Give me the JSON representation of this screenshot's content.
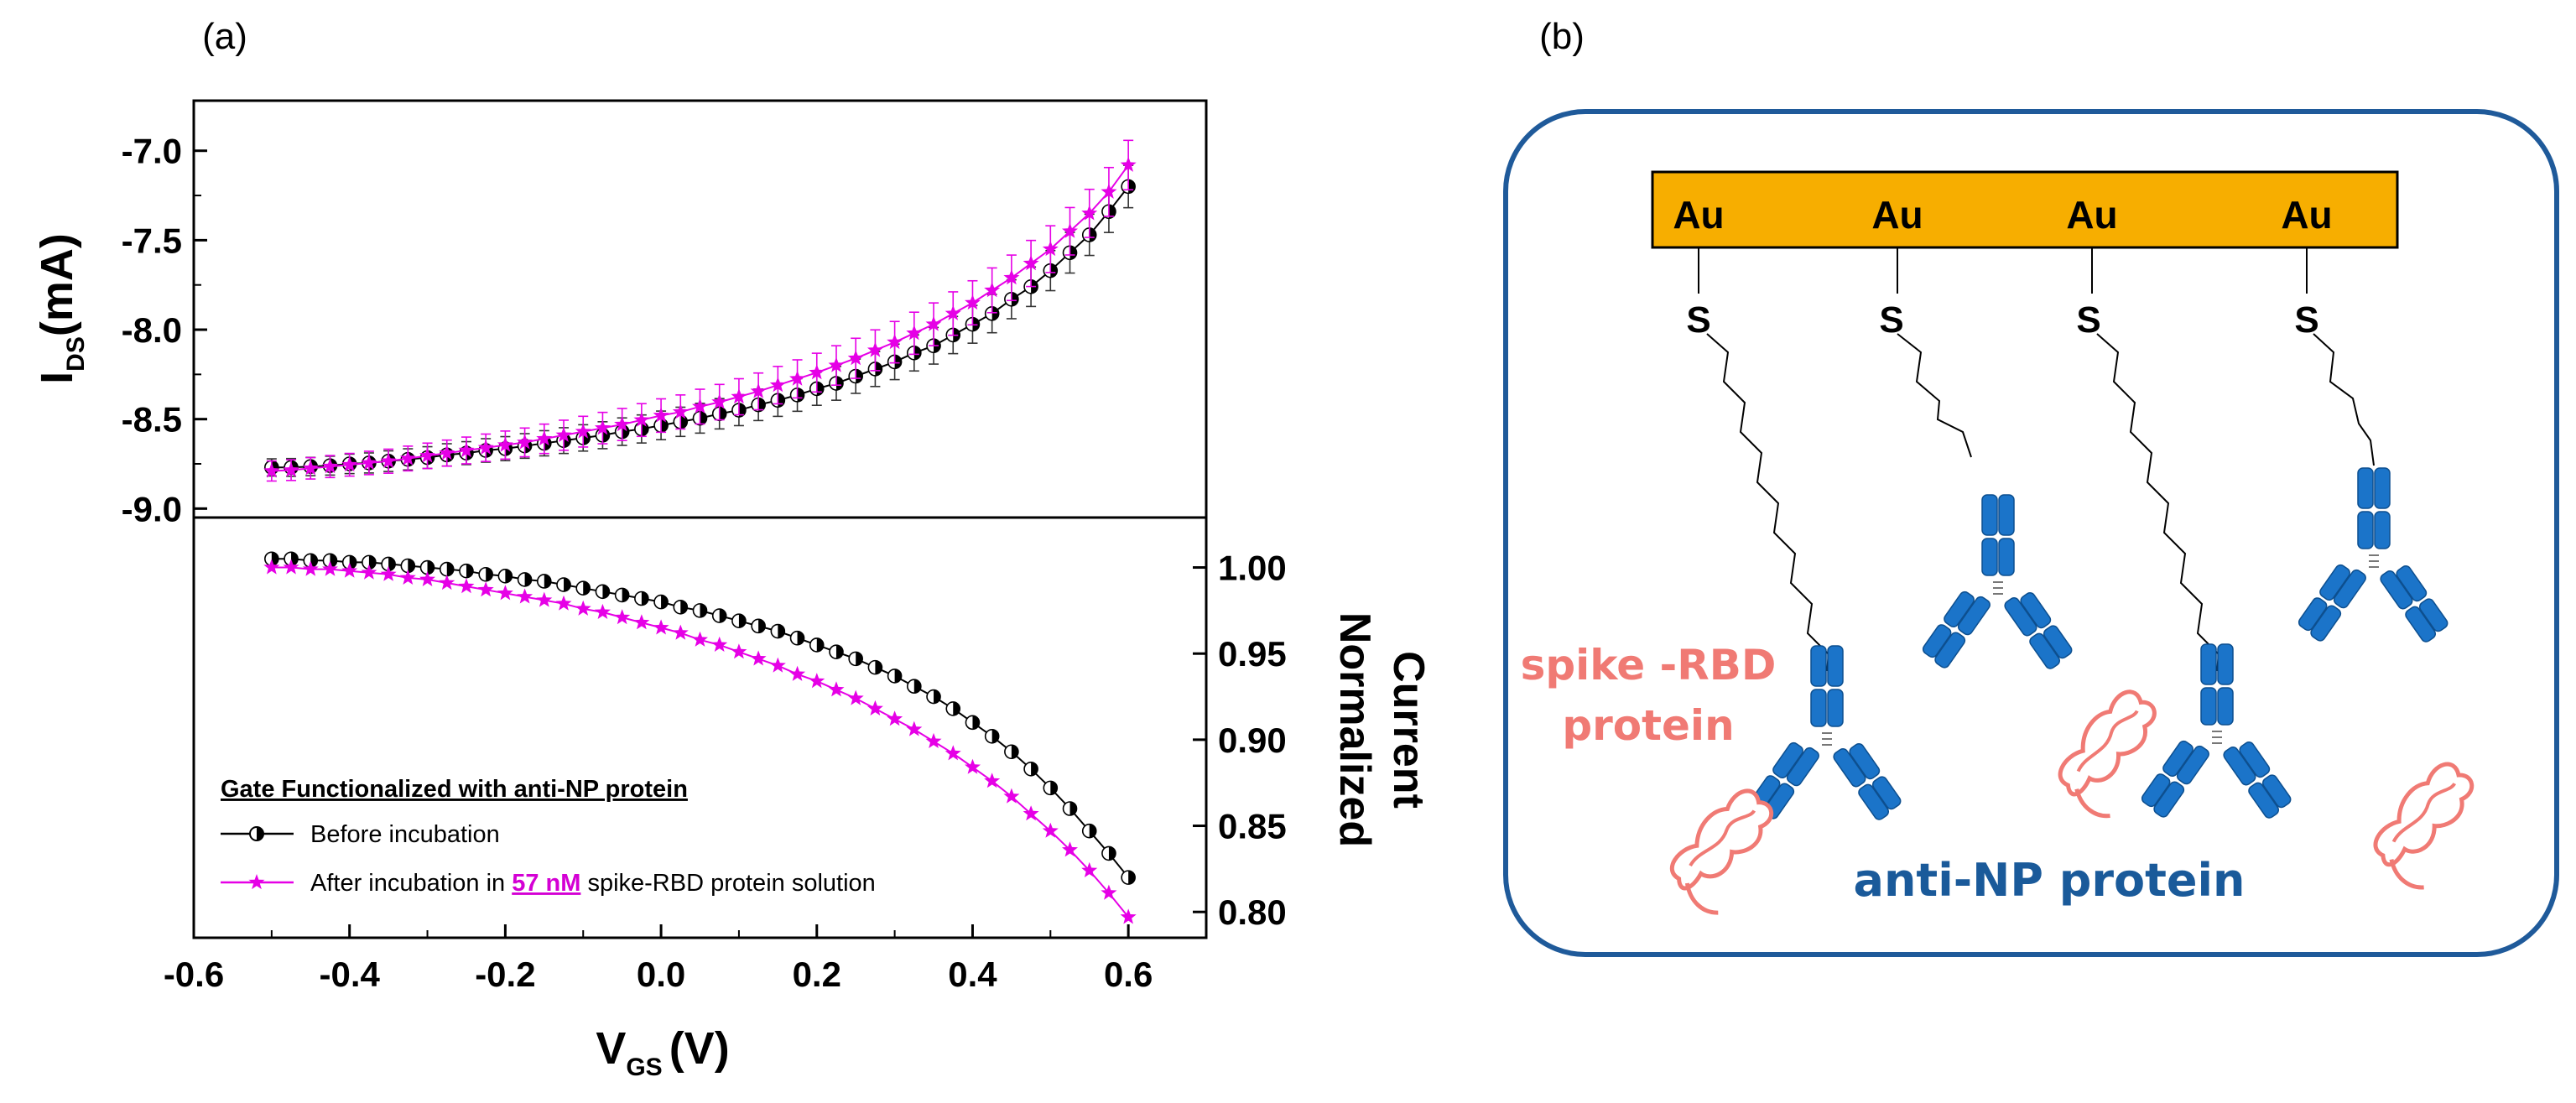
{
  "panel_a_label": "(a)",
  "panel_b_label": "(b)",
  "chart_data": [
    {
      "type": "line",
      "name": "top-panel",
      "ylabel_main": "I",
      "ylabel_sub": "DS",
      "ylabel_unit": "(mA)",
      "xlim": [
        -0.6,
        0.7
      ],
      "ylim": [
        -9.05,
        -6.72
      ],
      "yticks": [
        "-7.0",
        "-7.5",
        "-8.0",
        "-8.5",
        "-9.0"
      ],
      "ytick_values": [
        -7.0,
        -7.5,
        -8.0,
        -8.5,
        -9.0
      ],
      "x": [
        -0.5,
        -0.475,
        -0.45,
        -0.425,
        -0.4,
        -0.375,
        -0.35,
        -0.325,
        -0.3,
        -0.275,
        -0.25,
        -0.225,
        -0.2,
        -0.175,
        -0.15,
        -0.125,
        -0.1,
        -0.075,
        -0.05,
        -0.025,
        0.0,
        0.025,
        0.05,
        0.075,
        0.1,
        0.125,
        0.15,
        0.175,
        0.2,
        0.225,
        0.25,
        0.275,
        0.3,
        0.325,
        0.35,
        0.375,
        0.4,
        0.425,
        0.45,
        0.475,
        0.5,
        0.525,
        0.55,
        0.575,
        0.6
      ],
      "series": [
        {
          "name": "Before incubation",
          "color": "#000000",
          "marker": "half-circle",
          "values": [
            -8.77,
            -8.77,
            -8.765,
            -8.76,
            -8.75,
            -8.745,
            -8.735,
            -8.725,
            -8.715,
            -8.7,
            -8.69,
            -8.675,
            -8.665,
            -8.65,
            -8.635,
            -8.62,
            -8.605,
            -8.59,
            -8.57,
            -8.555,
            -8.535,
            -8.515,
            -8.495,
            -8.47,
            -8.45,
            -8.42,
            -8.395,
            -8.365,
            -8.33,
            -8.3,
            -8.26,
            -8.22,
            -8.18,
            -8.13,
            -8.09,
            -8.03,
            -7.97,
            -7.91,
            -7.83,
            -7.76,
            -7.67,
            -7.57,
            -7.47,
            -7.34,
            -7.2
          ],
          "error": 0.12
        },
        {
          "name": "After incubation in 57 nM spike-RBD protein solution",
          "color": "#e600e6",
          "marker": "star",
          "values": [
            -8.79,
            -8.785,
            -8.775,
            -8.765,
            -8.755,
            -8.745,
            -8.735,
            -8.72,
            -8.705,
            -8.69,
            -8.675,
            -8.66,
            -8.645,
            -8.63,
            -8.61,
            -8.59,
            -8.57,
            -8.55,
            -8.53,
            -8.505,
            -8.48,
            -8.46,
            -8.43,
            -8.405,
            -8.375,
            -8.345,
            -8.31,
            -8.275,
            -8.24,
            -8.2,
            -8.16,
            -8.115,
            -8.07,
            -8.02,
            -7.97,
            -7.91,
            -7.85,
            -7.78,
            -7.71,
            -7.63,
            -7.55,
            -7.45,
            -7.35,
            -7.23,
            -7.08
          ],
          "error": 0.14
        }
      ]
    },
    {
      "type": "line",
      "name": "bottom-panel",
      "xlabel_main": "V",
      "xlabel_sub": "GS",
      "xlabel_unit": "(V)",
      "ylabel_line1": "Normalized",
      "ylabel_line2": "Current",
      "xlim": [
        -0.6,
        0.7
      ],
      "ylim": [
        0.785,
        1.029
      ],
      "xticks": [
        "-0.6",
        "-0.4",
        "-0.2",
        "0.0",
        "0.2",
        "0.4",
        "0.6"
      ],
      "xtick_values": [
        -0.6,
        -0.4,
        -0.2,
        0.0,
        0.2,
        0.4,
        0.6
      ],
      "yticks": [
        "1.00",
        "0.95",
        "0.90",
        "0.85",
        "0.80"
      ],
      "ytick_values": [
        1.0,
        0.95,
        0.9,
        0.85,
        0.8
      ],
      "x": [
        -0.5,
        -0.475,
        -0.45,
        -0.425,
        -0.4,
        -0.375,
        -0.35,
        -0.325,
        -0.3,
        -0.275,
        -0.25,
        -0.225,
        -0.2,
        -0.175,
        -0.15,
        -0.125,
        -0.1,
        -0.075,
        -0.05,
        -0.025,
        0.0,
        0.025,
        0.05,
        0.075,
        0.1,
        0.125,
        0.15,
        0.175,
        0.2,
        0.225,
        0.25,
        0.275,
        0.3,
        0.325,
        0.35,
        0.375,
        0.4,
        0.425,
        0.45,
        0.475,
        0.5,
        0.525,
        0.55,
        0.575,
        0.6
      ],
      "series": [
        {
          "name": "Before incubation",
          "color": "#000000",
          "marker": "half-circle",
          "values": [
            1.005,
            1.005,
            1.004,
            1.004,
            1.003,
            1.003,
            1.002,
            1.001,
            1.0,
            0.999,
            0.998,
            0.996,
            0.995,
            0.993,
            0.992,
            0.99,
            0.988,
            0.986,
            0.984,
            0.982,
            0.98,
            0.977,
            0.975,
            0.972,
            0.969,
            0.966,
            0.963,
            0.959,
            0.955,
            0.951,
            0.947,
            0.942,
            0.937,
            0.931,
            0.925,
            0.918,
            0.91,
            0.902,
            0.893,
            0.883,
            0.872,
            0.86,
            0.847,
            0.834,
            0.82
          ]
        },
        {
          "name": "After incubation in 57 nM spike-RBD protein solution",
          "color": "#e600e6",
          "marker": "star",
          "values": [
            1.0,
            1.0,
            0.999,
            0.999,
            0.998,
            0.997,
            0.996,
            0.994,
            0.993,
            0.991,
            0.989,
            0.987,
            0.985,
            0.983,
            0.981,
            0.979,
            0.976,
            0.974,
            0.971,
            0.968,
            0.965,
            0.962,
            0.958,
            0.955,
            0.951,
            0.947,
            0.943,
            0.938,
            0.934,
            0.929,
            0.924,
            0.918,
            0.912,
            0.906,
            0.899,
            0.892,
            0.884,
            0.876,
            0.867,
            0.857,
            0.847,
            0.836,
            0.824,
            0.811,
            0.797
          ]
        }
      ],
      "legend": {
        "title": "Gate Functionalized with anti-NP protein",
        "entry1": "Before incubation",
        "entry2_prefix": "After incubation in ",
        "entry2_highlight": "57 nM",
        "entry2_suffix": " spike-RBD protein solution",
        "placement": "lower-left"
      }
    }
  ],
  "schematic": {
    "au_labels": [
      "Au",
      "Au",
      "Au",
      "Au"
    ],
    "s_labels": [
      "S",
      "S",
      "S",
      "S"
    ],
    "spike_label_line1": "spike -RBD",
    "spike_label_line2": "protein",
    "antibody_label": "anti-NP protein",
    "au_color": "#f7ae00",
    "antibody_color": "#1b74c9",
    "spike_color": "#f07a74",
    "frame_color": "#1f5a9a",
    "label_blue": "#1a5a9a"
  }
}
